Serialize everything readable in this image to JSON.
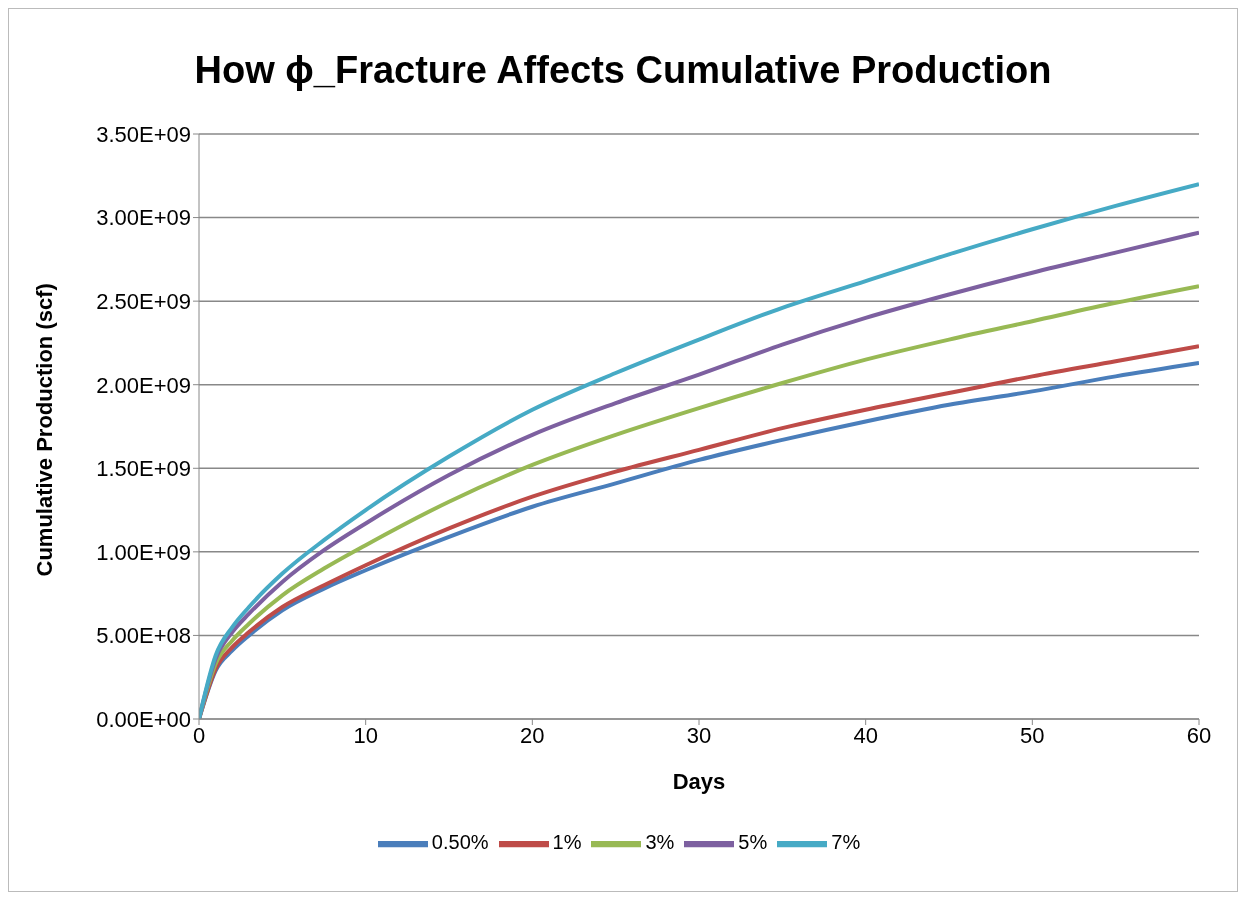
{
  "chart_data": {
    "type": "line",
    "title": "How ϕ_Fracture Affects Cumulative Production",
    "xlabel": "Days",
    "ylabel": "Cumulative Production (scf)",
    "x": [
      0,
      1,
      2,
      3,
      5,
      7.5,
      10,
      15,
      20,
      25,
      30,
      35,
      40,
      45,
      50,
      55,
      60
    ],
    "series": [
      {
        "name": "0.50%",
        "color": "#4a7ebb",
        "values": [
          0,
          290000000.0,
          410000000.0,
          500000000.0,
          650000000.0,
          780000000.0,
          890000000.0,
          1090000000.0,
          1270000000.0,
          1410000000.0,
          1550000000.0,
          1670000000.0,
          1780000000.0,
          1880000000.0,
          1960000000.0,
          2050000000.0,
          2130000000.0
        ]
      },
      {
        "name": "1%",
        "color": "#be4b48",
        "values": [
          0,
          300000000.0,
          430000000.0,
          520000000.0,
          670000000.0,
          800000000.0,
          920000000.0,
          1140000000.0,
          1330000000.0,
          1480000000.0,
          1610000000.0,
          1740000000.0,
          1850000000.0,
          1950000000.0,
          2050000000.0,
          2140000000.0,
          2230000000.0
        ]
      },
      {
        "name": "3%",
        "color": "#98b954",
        "values": [
          0,
          330000000.0,
          470000000.0,
          570000000.0,
          740000000.0,
          900000000.0,
          1040000000.0,
          1300000000.0,
          1520000000.0,
          1700000000.0,
          1860000000.0,
          2010000000.0,
          2150000000.0,
          2270000000.0,
          2380000000.0,
          2490000000.0,
          2590000000.0
        ]
      },
      {
        "name": "5%",
        "color": "#7d60a0",
        "values": [
          0,
          360000000.0,
          520000000.0,
          630000000.0,
          820000000.0,
          1010000000.0,
          1170000000.0,
          1460000000.0,
          1700000000.0,
          1890000000.0,
          2060000000.0,
          2240000000.0,
          2400000000.0,
          2540000000.0,
          2670000000.0,
          2790000000.0,
          2910000000.0
        ]
      },
      {
        "name": "7%",
        "color": "#46aac5",
        "values": [
          0,
          380000000.0,
          550000000.0,
          670000000.0,
          870000000.0,
          1070000000.0,
          1250000000.0,
          1570000000.0,
          1850000000.0,
          2070000000.0,
          2270000000.0,
          2460000000.0,
          2620000000.0,
          2780000000.0,
          2930000000.0,
          3070000000.0,
          3200000000.0
        ]
      }
    ],
    "xlim": [
      0,
      60
    ],
    "xticks": [
      0,
      10,
      20,
      30,
      40,
      50,
      60
    ],
    "ylim": [
      0,
      3500000000
    ],
    "yticks": [
      {
        "value": 0,
        "label": "0.00E+00"
      },
      {
        "value": 500000000,
        "label": "5.00E+08"
      },
      {
        "value": 1000000000,
        "label": "1.00E+09"
      },
      {
        "value": 1500000000,
        "label": "1.50E+09"
      },
      {
        "value": 2000000000,
        "label": "2.00E+09"
      },
      {
        "value": 2500000000,
        "label": "2.50E+09"
      },
      {
        "value": 3000000000,
        "label": "3.00E+09"
      },
      {
        "value": 3500000000,
        "label": "3.50E+09"
      }
    ],
    "grid": "y",
    "legend": "bottom",
    "marker": "none",
    "line_style": "solid"
  }
}
